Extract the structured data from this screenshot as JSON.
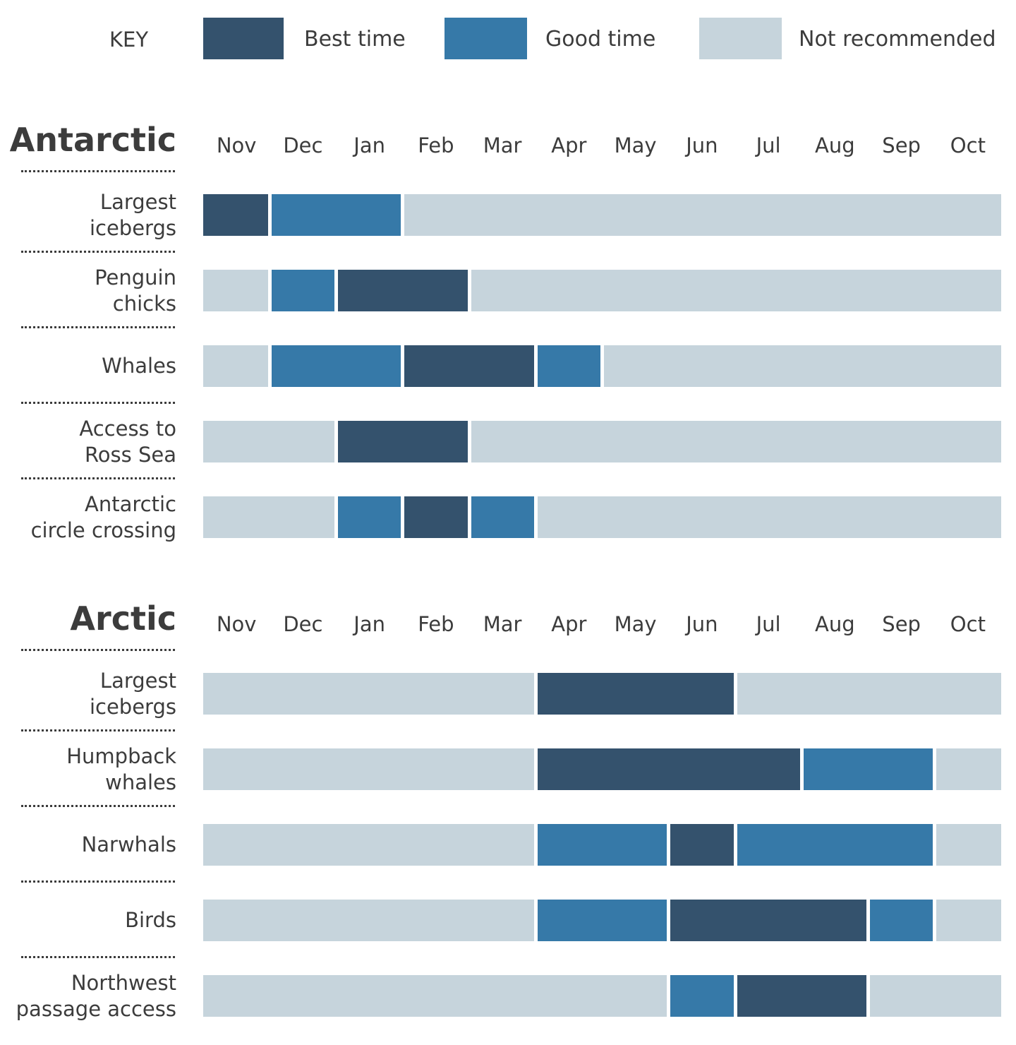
{
  "key": {
    "title": "KEY",
    "items": [
      {
        "label": "Best time",
        "color": "#34526d"
      },
      {
        "label": "Good time",
        "color": "#3679a8"
      },
      {
        "label": "Not recommended",
        "color": "#c6d4dc"
      }
    ]
  },
  "chart_data": {
    "type": "heatmap",
    "months": [
      "Nov",
      "Dec",
      "Jan",
      "Feb",
      "Mar",
      "Apr",
      "May",
      "Jun",
      "Jul",
      "Aug",
      "Sep",
      "Oct"
    ],
    "legend": {
      "best": "Best time",
      "good": "Good time",
      "not": "Not recommended"
    },
    "colors": {
      "best": "#34526d",
      "good": "#3679a8",
      "not": "#c6d4dc"
    },
    "sections": [
      {
        "title": "Antarctic",
        "rows": [
          {
            "label": [
              "Largest",
              "icebergs"
            ],
            "values": [
              "best",
              "good",
              "good",
              "not",
              "not",
              "not",
              "not",
              "not",
              "not",
              "not",
              "not",
              "not"
            ]
          },
          {
            "label": [
              "Penguin",
              "chicks"
            ],
            "values": [
              "not",
              "good",
              "best",
              "best",
              "not",
              "not",
              "not",
              "not",
              "not",
              "not",
              "not",
              "not"
            ]
          },
          {
            "label": [
              "Whales"
            ],
            "values": [
              "not",
              "good",
              "good",
              "best",
              "best",
              "good",
              "not",
              "not",
              "not",
              "not",
              "not",
              "not"
            ]
          },
          {
            "label": [
              "Access to",
              "Ross Sea"
            ],
            "values": [
              "not",
              "not",
              "best",
              "best",
              "not",
              "not",
              "not",
              "not",
              "not",
              "not",
              "not",
              "not"
            ]
          },
          {
            "label": [
              "Antarctic",
              "circle crossing"
            ],
            "values": [
              "not",
              "not",
              "good",
              "best",
              "good",
              "not",
              "not",
              "not",
              "not",
              "not",
              "not",
              "not"
            ]
          }
        ]
      },
      {
        "title": "Arctic",
        "rows": [
          {
            "label": [
              "Largest",
              "icebergs"
            ],
            "values": [
              "not",
              "not",
              "not",
              "not",
              "not",
              "best",
              "best",
              "best",
              "not",
              "not",
              "not",
              "not"
            ]
          },
          {
            "label": [
              "Humpback",
              "whales"
            ],
            "values": [
              "not",
              "not",
              "not",
              "not",
              "not",
              "best",
              "best",
              "best",
              "best",
              "good",
              "good",
              "not"
            ]
          },
          {
            "label": [
              "Narwhals"
            ],
            "values": [
              "not",
              "not",
              "not",
              "not",
              "not",
              "good",
              "good",
              "best",
              "good",
              "good",
              "good",
              "not"
            ]
          },
          {
            "label": [
              "Birds"
            ],
            "values": [
              "not",
              "not",
              "not",
              "not",
              "not",
              "good",
              "good",
              "best",
              "best",
              "best",
              "good",
              "not"
            ]
          },
          {
            "label": [
              "Northwest",
              "passage access"
            ],
            "values": [
              "not",
              "not",
              "not",
              "not",
              "not",
              "not",
              "not",
              "good",
              "best",
              "best",
              "not",
              "not"
            ]
          }
        ]
      }
    ]
  }
}
